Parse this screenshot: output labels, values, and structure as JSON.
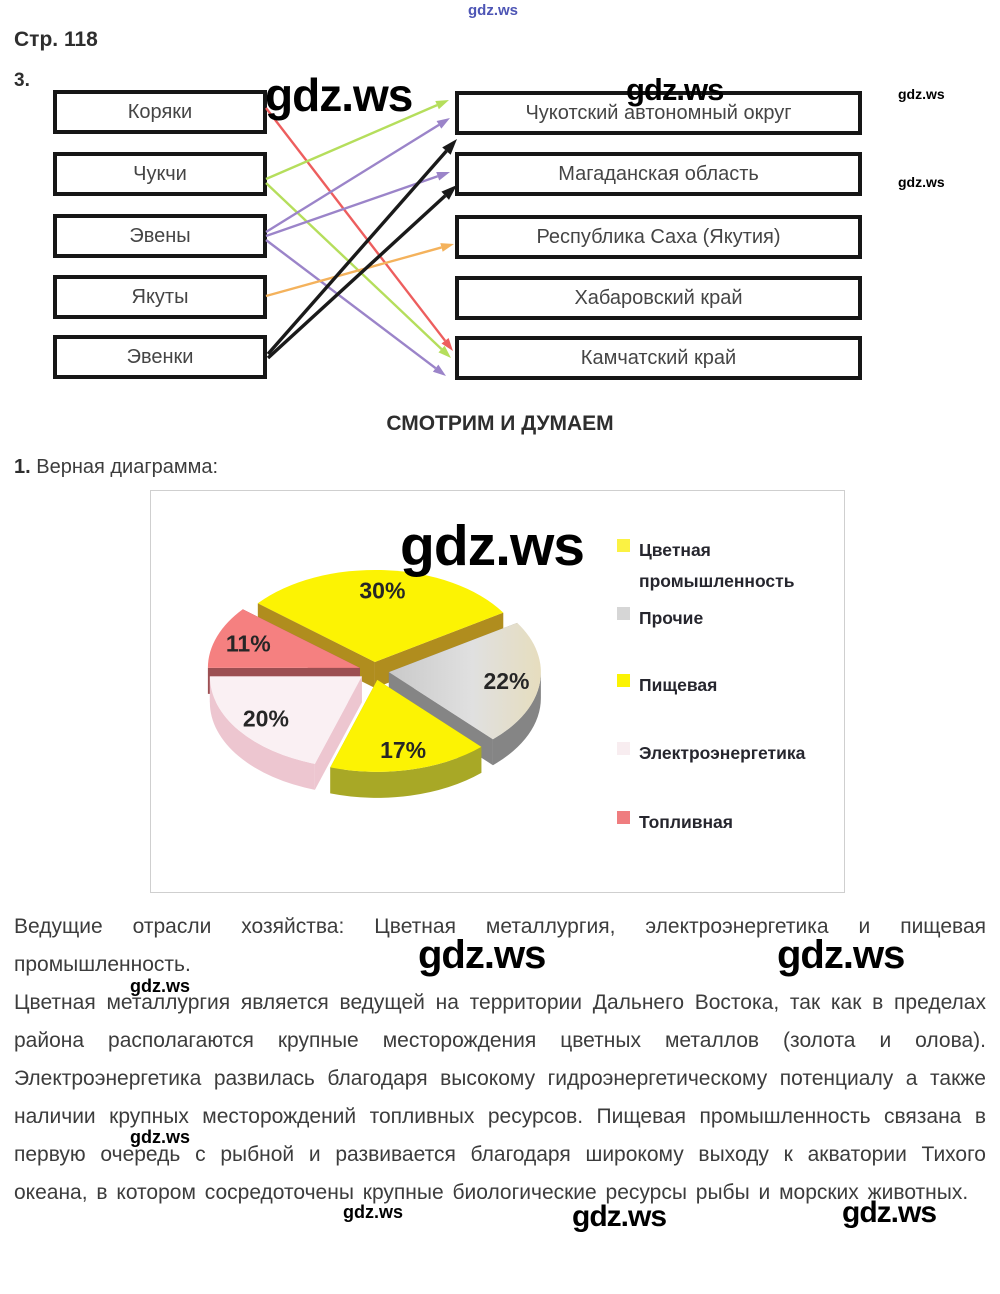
{
  "watermark": {
    "text": "gdz.ws",
    "blue_color": "#4D55B5"
  },
  "page": {
    "header": "Стр. 118",
    "task_number": "3.",
    "section_heading": "СМОТРИМ И ДУМАЕМ",
    "question_number": "1.",
    "question_text": "Верная диаграмма:"
  },
  "matching": {
    "left": [
      "Коряки",
      "Чукчи",
      "Эвены",
      "Якуты",
      "Эвенки"
    ],
    "right": [
      "Чукотский автономный округ",
      "Магаданская область",
      "Республика Саха (Якутия)",
      "Хабаровский край",
      "Камчатский край"
    ],
    "arrow_colors": {
      "red": "#ED5E5E",
      "green": "#B5DE5C",
      "purple": "#9B84C9",
      "orange": "#F4B25C",
      "black": "#1A1A1A"
    },
    "connections": [
      {
        "from": 0,
        "to": 4,
        "color": "red"
      },
      {
        "from": 1,
        "to": 0,
        "color": "green"
      },
      {
        "from": 1,
        "to": 4,
        "color": "green"
      },
      {
        "from": 2,
        "to": 0,
        "color": "purple"
      },
      {
        "from": 2,
        "to": 1,
        "color": "purple"
      },
      {
        "from": 2,
        "to": 4,
        "color": "purple"
      },
      {
        "from": 3,
        "to": 2,
        "color": "orange"
      },
      {
        "from": 4,
        "to": 0,
        "color": "black"
      },
      {
        "from": 4,
        "to": 1,
        "color": "black"
      }
    ]
  },
  "chart_data": {
    "type": "pie",
    "style": "3d-exploded",
    "start_angle_deg": 180,
    "direction": "clockwise",
    "slices": [
      {
        "label": "Топливная",
        "value": 11,
        "color": "#F58080",
        "side": "#9C4F52"
      },
      {
        "label": "Цветная промышленность",
        "value": 30,
        "color": "#FCF303",
        "side": "#B08D1E"
      },
      {
        "label": "Прочие",
        "value": 22,
        "color": "#C9C9C9",
        "color2": "#E6DDBE",
        "side": "#858585"
      },
      {
        "label": "Пищевая",
        "value": 17,
        "color": "#FCF303",
        "side": "#A8A826"
      },
      {
        "label": "Электроэнергетика",
        "value": 20,
        "color": "#FAF0F3",
        "side": "#EDC6D0"
      }
    ],
    "legend": [
      {
        "label": "Цветная промышленность",
        "color": "#FBF243"
      },
      {
        "label": "Прочие",
        "color": "#D6D6D6"
      },
      {
        "label": "Пищевая",
        "color": "#FBF303"
      },
      {
        "label": "Электроэнергетика",
        "color": "#F8EDF0"
      },
      {
        "label": "Топливная",
        "color": "#EF7D7F"
      }
    ],
    "label_format": "percent",
    "legend_position": "right"
  },
  "paragraphs": [
    "Ведущие отрасли хозяйства: Цветная металлургия, электроэнергетика и пищевая промышленность.",
    "Цветная металлургия является ведущей на территории Дальнего Востока, так как в пределах района располагаются крупные месторождения цветных металлов (золота и олова). Электроэнергетика развилась благодаря высокому гидроэнергетическому потенциалу а также наличии крупных месторождений топливных ресурсов. Пищевая промышленность связана в первую очередь с рыбной и развивается благодаря широкому выходу к акватории Тихого океана, в котором сосредоточены крупные биологические ресурсы рыбы и морских животных."
  ]
}
